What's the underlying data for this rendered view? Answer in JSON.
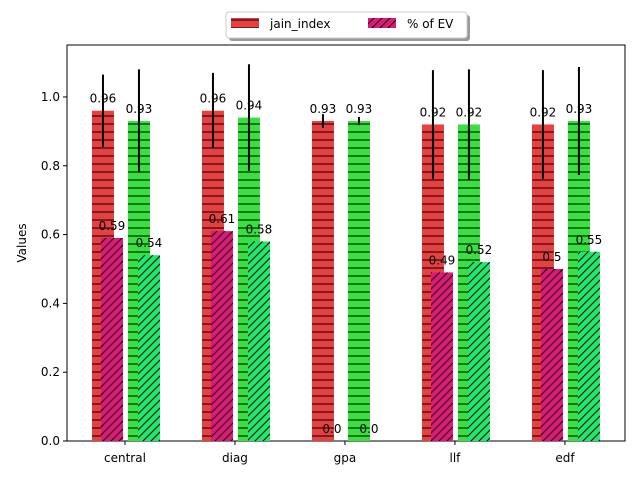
{
  "chart_data": {
    "type": "bar",
    "categories": [
      "central",
      "diag",
      "gpa",
      "llf",
      "edf"
    ],
    "ylabel": "Values",
    "ylim": [
      0,
      1.151
    ],
    "yticks": [
      {
        "value": 0,
        "label": "0.0"
      },
      0.2,
      0.4,
      0.6,
      0.8,
      {
        "value": 1,
        "label": "1.0"
      }
    ],
    "legend": "upper center",
    "series": [
      {
        "name": "jain_index",
        "color": "#e84040",
        "hatch": "-",
        "values": [
          0.96,
          0.96,
          0.93,
          0.92,
          0.92
        ],
        "errors": [
          0.105,
          0.11,
          0.02,
          0.158,
          0.158
        ]
      },
      {
        "name": "% of EV",
        "color": "#e0187a",
        "hatch": "/",
        "values": [
          0.59,
          0.61,
          0,
          0.49,
          0.5
        ],
        "value_labels": [
          "0.59",
          "0.61",
          "0.0",
          "0.49",
          "0.5"
        ]
      },
      {
        "color": "#38e040",
        "hatch": "-",
        "values": [
          0.93,
          0.94,
          0.93,
          0.92,
          0.93
        ],
        "errors": [
          0.15,
          0.155,
          0.012,
          0.16,
          0.157
        ]
      },
      {
        "color": "#20e86a",
        "hatch": "/",
        "values": [
          0.54,
          0.58,
          0,
          0.52,
          0.55
        ],
        "value_labels": [
          "0.54",
          "0.58",
          "0.0",
          "0.52",
          "0.55"
        ]
      }
    ]
  }
}
